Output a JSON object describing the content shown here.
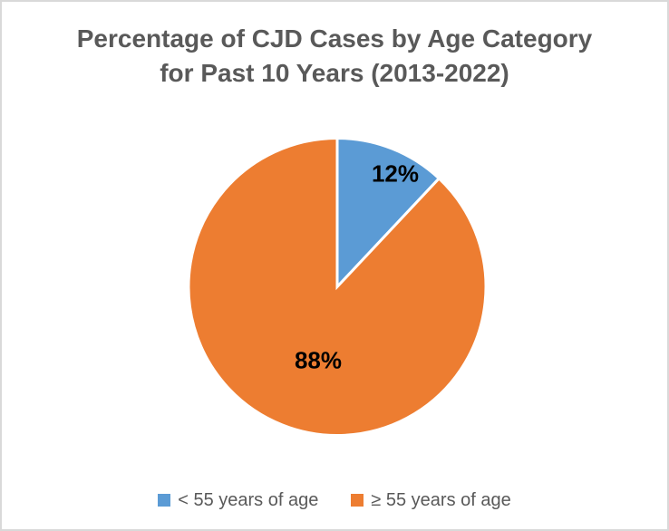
{
  "title": {
    "text": "Percentage of CJD Cases by Age Category for Past 10 Years (2013-2022)",
    "lines": [
      "Percentage of CJD Cases by Age Category",
      "for Past 10 Years (2013-2022)"
    ]
  },
  "legend": {
    "position": "bottom",
    "items": [
      {
        "label": "< 55 years of age",
        "color": "#5B9BD5"
      },
      {
        "label": "≥ 55 years of age",
        "color": "#ED7D31"
      }
    ]
  },
  "colors": {
    "slice_blue": "#5B9BD5",
    "slice_orange": "#ED7D31",
    "title_text": "#595959",
    "legend_text": "#595959",
    "data_label_text": "#000000",
    "slice_separator": "#FFFFFF",
    "figure_border": "#D9D9D9",
    "background": "#FFFFFF"
  },
  "chart_data": {
    "type": "pie",
    "title": "Percentage of CJD Cases by Age Category for Past 10 Years (2013-2022)",
    "categories": [
      "< 55 years of age",
      "≥ 55 years of age"
    ],
    "values": [
      12,
      88
    ],
    "unit": "percent",
    "colors": [
      "#5B9BD5",
      "#ED7D31"
    ],
    "data_labels": [
      "12%",
      "88%"
    ],
    "legend_position": "bottom",
    "start_angle_deg": 0,
    "direction": "clockwise"
  }
}
